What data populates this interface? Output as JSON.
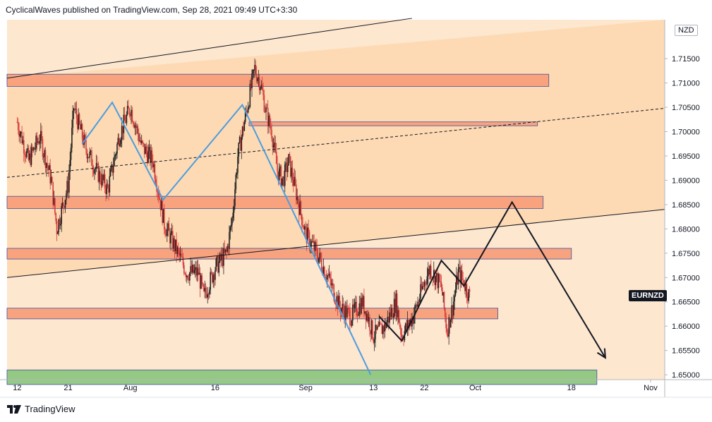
{
  "header": {
    "text": "CyclicalWaves published on TradingView.com, Sep 28, 2021 09:49 UTC+3:30"
  },
  "footer": {
    "brand": "TradingView"
  },
  "unit": "NZD",
  "symbol": "EURNZD",
  "colors": {
    "background_zone": "#fde3c6",
    "supply_zone": "#f8a07c",
    "demand_zone": "#8fc880",
    "zone_border": "#3a4a9a",
    "wave_blue": "#4d9de0",
    "projection": "#131722",
    "candle_up": "#222222",
    "candle_down": "#d53b3b"
  },
  "chart_data": {
    "type": "candlestick",
    "instrument": "EURNZD",
    "unit": "NZD",
    "ylim": [
      1.649,
      1.723
    ],
    "y_ticks": [
      "1.71500",
      "1.71000",
      "1.70500",
      "1.70000",
      "1.69500",
      "1.69000",
      "1.68500",
      "1.68000",
      "1.67500",
      "1.67000",
      "1.66500",
      "1.66000",
      "1.65500",
      "1.65000"
    ],
    "x_ticks": [
      {
        "label": "12",
        "day": 0
      },
      {
        "label": "21",
        "day": 9
      },
      {
        "label": "Aug",
        "day": 20
      },
      {
        "label": "16",
        "day": 35
      },
      {
        "label": "Sep",
        "day": 51
      },
      {
        "label": "13",
        "day": 63
      },
      {
        "label": "22",
        "day": 72
      },
      {
        "label": "Oct",
        "day": 81
      },
      {
        "label": "18",
        "day": 98
      },
      {
        "label": "Nov",
        "day": 112
      }
    ],
    "x_domain_days": [
      -1.8,
      114.5
    ],
    "price_anchors": [
      [
        0,
        1.702
      ],
      [
        2,
        1.694
      ],
      [
        4,
        1.699
      ],
      [
        6,
        1.69
      ],
      [
        7,
        1.68
      ],
      [
        9,
        1.689
      ],
      [
        10,
        1.705
      ],
      [
        12,
        1.697
      ],
      [
        14,
        1.692
      ],
      [
        16,
        1.688
      ],
      [
        18,
        1.699
      ],
      [
        20,
        1.705
      ],
      [
        22,
        1.697
      ],
      [
        24,
        1.694
      ],
      [
        26,
        1.681
      ],
      [
        28,
        1.676
      ],
      [
        30,
        1.671
      ],
      [
        32,
        1.671
      ],
      [
        33,
        1.666
      ],
      [
        35,
        1.672
      ],
      [
        37,
        1.675
      ],
      [
        38,
        1.682
      ],
      [
        39,
        1.695
      ],
      [
        41,
        1.707
      ],
      [
        42,
        1.713
      ],
      [
        43,
        1.71
      ],
      [
        44,
        1.704
      ],
      [
        45,
        1.7
      ],
      [
        46,
        1.692
      ],
      [
        47,
        1.69
      ],
      [
        48,
        1.694
      ],
      [
        49,
        1.689
      ],
      [
        50,
        1.684
      ],
      [
        51,
        1.679
      ],
      [
        53,
        1.675
      ],
      [
        55,
        1.67
      ],
      [
        57,
        1.664
      ],
      [
        59,
        1.662
      ],
      [
        61,
        1.665
      ],
      [
        62,
        1.662
      ],
      [
        63,
        1.658
      ],
      [
        65,
        1.66
      ],
      [
        67,
        1.665
      ],
      [
        68,
        1.658
      ],
      [
        70,
        1.662
      ],
      [
        72,
        1.669
      ],
      [
        73,
        1.672
      ],
      [
        74,
        1.67
      ],
      [
        75,
        1.668
      ],
      [
        76,
        1.659
      ],
      [
        77,
        1.664
      ],
      [
        78,
        1.671
      ],
      [
        79,
        1.669
      ],
      [
        80,
        1.666
      ]
    ],
    "zones": [
      {
        "type": "supply",
        "from_day": -1.8,
        "to_day": 94,
        "low": 1.7093,
        "high": 1.7118
      },
      {
        "type": "supply",
        "from_day": 41,
        "to_day": 92,
        "low": 1.7012,
        "high": 1.702
      },
      {
        "type": "supply",
        "from_day": -1.8,
        "to_day": 93,
        "low": 1.6842,
        "high": 1.6867
      },
      {
        "type": "supply",
        "from_day": -1.8,
        "to_day": 98,
        "low": 1.6738,
        "high": 1.676
      },
      {
        "type": "supply",
        "from_day": -1.8,
        "to_day": 85,
        "low": 1.6615,
        "high": 1.6637
      },
      {
        "type": "demand",
        "from_day": -1.8,
        "to_day": 102.5,
        "low": 1.648,
        "high": 1.651
      }
    ],
    "trendlines": [
      {
        "style": "solid",
        "points": [
          [
            -1.8,
            1.711
          ],
          [
            69.8,
            1.7233
          ]
        ]
      },
      {
        "style": "dashed",
        "points": [
          [
            -1.8,
            1.6906
          ],
          [
            114.5,
            1.7048
          ]
        ]
      },
      {
        "style": "solid",
        "points": [
          [
            -1.8,
            1.67
          ],
          [
            114.5,
            1.684
          ]
        ]
      }
    ],
    "wave_blue": [
      [
        11.5,
        1.6975
      ],
      [
        16.8,
        1.706
      ],
      [
        25.8,
        1.686
      ],
      [
        39.8,
        1.7055
      ],
      [
        62.5,
        1.65
      ]
    ],
    "projection": [
      [
        64,
        1.662
      ],
      [
        68,
        1.657
      ],
      [
        75,
        1.6735
      ],
      [
        79,
        1.6683
      ],
      [
        87.5,
        1.6855
      ],
      [
        104,
        1.6535
      ]
    ]
  }
}
